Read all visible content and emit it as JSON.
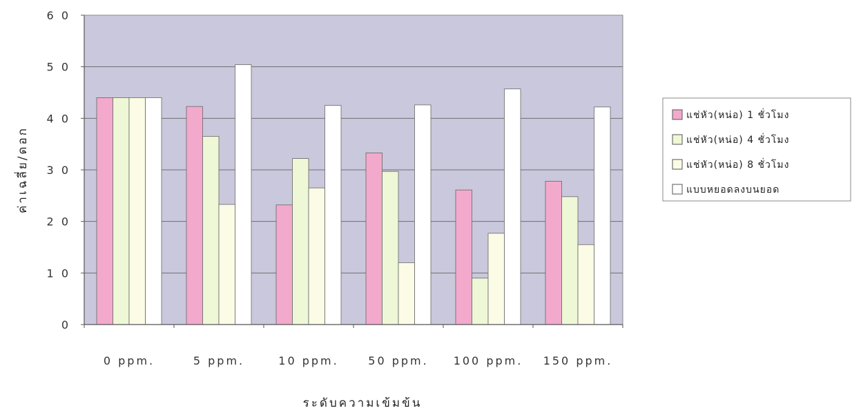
{
  "chart_data": {
    "type": "bar",
    "title": "",
    "xlabel": "ระดับความเข้มข้น",
    "ylabel": "ค่าเฉลี่ย/ดอก",
    "ylim": [
      0,
      60
    ],
    "yticks": [
      "0",
      "1 0",
      "2 0",
      "3 0",
      "4 0",
      "5 0",
      "6 0"
    ],
    "grid": true,
    "legend_position": "right",
    "categories": [
      "0 ppm.",
      "5 ppm.",
      "10 ppm.",
      "50 ppm.",
      "100 ppm.",
      "150 ppm."
    ],
    "series": [
      {
        "name": "แช่หัว(หน่อ) 1 ชั่วโมง",
        "color": "#f2a9cc",
        "values": [
          44,
          42.3,
          23.2,
          33.3,
          26.1,
          27.8
        ]
      },
      {
        "name": "แช่หัว(หน่อ) 4 ชั่วโมง",
        "color": "#eef7d6",
        "values": [
          44,
          36.5,
          32.2,
          29.7,
          9,
          24.8
        ]
      },
      {
        "name": "แช่หัว(หน่อ) 8 ชั่วโมง",
        "color": "#fbfbe6",
        "values": [
          44,
          23.3,
          26.5,
          12,
          17.7,
          15.5
        ]
      },
      {
        "name": "แบบหยอดลงบนยอด",
        "color": "#ffffff",
        "values": [
          44,
          50.4,
          42.5,
          42.6,
          45.7,
          42.2
        ]
      }
    ],
    "plot_background": "#cac8dc"
  }
}
